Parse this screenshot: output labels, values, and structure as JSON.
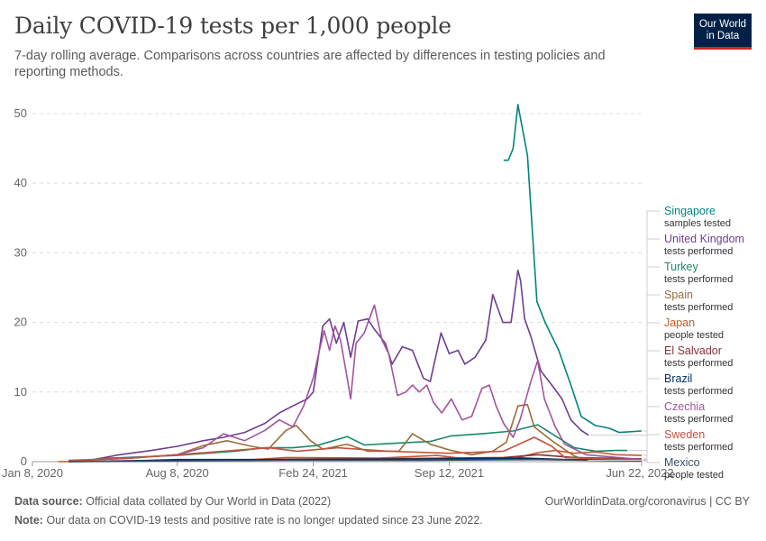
{
  "header": {
    "title": "Daily COVID-19 tests per 1,000 people",
    "subtitle": "7-day rolling average. Comparisons across countries are affected by differences in testing policies and reporting methods.",
    "logo_line1": "Our World",
    "logo_line2": "in Data"
  },
  "footer": {
    "source_label": "Data source:",
    "source_text": "Official data collated by Our World in Data (2022)",
    "credit": "OurWorldinData.org/coronavirus | CC BY",
    "note_label": "Note:",
    "note_text": "Our data on COVID-19 tests and positive rate is no longer updated since 23 June 2022."
  },
  "chart_data": {
    "type": "line",
    "title": "Daily COVID-19 tests per 1,000 people",
    "subtitle": "7-day rolling average. Comparisons across countries are affected by differences in testing policies and reporting methods.",
    "x_ticks": [
      "Jan 8, 2020",
      "Aug 8, 2020",
      "Feb 24, 2021",
      "Sep 12, 2021",
      "Jun 22, 2022"
    ],
    "y_ticks": [
      0,
      10,
      20,
      30,
      40,
      50
    ],
    "xlim": [
      "2020-01-08",
      "2022-06-22"
    ],
    "ylim": [
      0,
      51
    ],
    "grid": "horizontal dashed",
    "legend_placement": "right",
    "series": [
      {
        "name": "Singapore",
        "sub": "samples tested",
        "color": "#00847e",
        "points": [
          [
            "2021-12-01",
            43.3
          ],
          [
            "2021-12-08",
            43.3
          ],
          [
            "2021-12-15",
            45
          ],
          [
            "2021-12-22",
            51.3
          ],
          [
            "2022-01-05",
            44
          ],
          [
            "2022-01-19",
            23
          ],
          [
            "2022-01-31",
            20
          ],
          [
            "2022-02-20",
            16
          ],
          [
            "2022-03-10",
            11
          ],
          [
            "2022-03-25",
            6.5
          ],
          [
            "2022-04-15",
            5.2
          ],
          [
            "2022-05-05",
            4.8
          ],
          [
            "2022-05-20",
            4.2
          ],
          [
            "2022-06-22",
            4.4
          ]
        ]
      },
      {
        "name": "United Kingdom",
        "sub": "tests performed",
        "color": "#6d3e91",
        "points": [
          [
            "2020-04-01",
            0.2
          ],
          [
            "2020-05-15",
            1.0
          ],
          [
            "2020-07-01",
            1.6
          ],
          [
            "2020-08-08",
            2.2
          ],
          [
            "2020-09-15",
            3.0
          ],
          [
            "2020-10-15",
            3.5
          ],
          [
            "2020-11-15",
            4.2
          ],
          [
            "2020-12-15",
            5.5
          ],
          [
            "2021-01-05",
            7.0
          ],
          [
            "2021-01-25",
            8.0
          ],
          [
            "2021-02-15",
            9.0
          ],
          [
            "2021-02-24",
            10.0
          ],
          [
            "2021-03-10",
            19.5
          ],
          [
            "2021-03-20",
            20.5
          ],
          [
            "2021-03-30",
            17.0
          ],
          [
            "2021-04-10",
            20.0
          ],
          [
            "2021-04-20",
            15.0
          ],
          [
            "2021-05-01",
            20.2
          ],
          [
            "2021-05-15",
            20.5
          ],
          [
            "2021-05-25",
            19.0
          ],
          [
            "2021-06-10",
            17.0
          ],
          [
            "2021-06-20",
            14.0
          ],
          [
            "2021-07-05",
            16.5
          ],
          [
            "2021-07-20",
            16.0
          ],
          [
            "2021-08-05",
            12.0
          ],
          [
            "2021-08-15",
            11.5
          ],
          [
            "2021-08-31",
            18.5
          ],
          [
            "2021-09-12",
            15.5
          ],
          [
            "2021-09-25",
            16.0
          ],
          [
            "2021-10-05",
            14.0
          ],
          [
            "2021-10-20",
            15.0
          ],
          [
            "2021-11-05",
            17.5
          ],
          [
            "2021-11-15",
            24.0
          ],
          [
            "2021-11-30",
            20.0
          ],
          [
            "2021-12-12",
            20.0
          ],
          [
            "2021-12-22",
            27.5
          ],
          [
            "2021-12-26",
            26.0
          ],
          [
            "2022-01-01",
            20.5
          ],
          [
            "2022-01-10",
            18.0
          ],
          [
            "2022-01-25",
            13.0
          ],
          [
            "2022-02-10",
            11.0
          ],
          [
            "2022-02-25",
            9.0
          ],
          [
            "2022-03-10",
            6.0
          ],
          [
            "2022-03-25",
            4.5
          ],
          [
            "2022-04-05",
            3.8
          ]
        ]
      },
      {
        "name": "Turkey",
        "sub": "tests performed",
        "color": "#18896a",
        "points": [
          [
            "2020-03-20",
            0.1
          ],
          [
            "2020-05-01",
            0.5
          ],
          [
            "2020-08-08",
            0.9
          ],
          [
            "2020-11-01",
            1.5
          ],
          [
            "2020-12-15",
            2.0
          ],
          [
            "2021-01-25",
            2.0
          ],
          [
            "2021-03-01",
            2.3
          ],
          [
            "2021-04-15",
            3.6
          ],
          [
            "2021-05-10",
            2.4
          ],
          [
            "2021-06-15",
            2.6
          ],
          [
            "2021-08-15",
            2.9
          ],
          [
            "2021-09-15",
            3.7
          ],
          [
            "2021-10-30",
            4.0
          ],
          [
            "2021-12-15",
            4.4
          ],
          [
            "2022-01-20",
            5.3
          ],
          [
            "2022-02-10",
            4.0
          ],
          [
            "2022-03-15",
            2.0
          ],
          [
            "2022-04-15",
            1.5
          ],
          [
            "2022-05-15",
            1.6
          ],
          [
            "2022-06-01",
            1.6
          ]
        ]
      },
      {
        "name": "Spain",
        "sub": "tests performed",
        "color": "#996d39",
        "points": [
          [
            "2020-03-01",
            0.2
          ],
          [
            "2020-06-01",
            0.5
          ],
          [
            "2020-08-08",
            1.0
          ],
          [
            "2020-09-15",
            2.3
          ],
          [
            "2020-10-20",
            3.0
          ],
          [
            "2020-11-25",
            2.2
          ],
          [
            "2020-12-20",
            1.8
          ],
          [
            "2021-01-15",
            4.5
          ],
          [
            "2021-01-30",
            5.2
          ],
          [
            "2021-02-20",
            3.0
          ],
          [
            "2021-03-10",
            1.8
          ],
          [
            "2021-04-15",
            2.5
          ],
          [
            "2021-05-15",
            1.5
          ],
          [
            "2021-06-30",
            1.5
          ],
          [
            "2021-07-20",
            4.0
          ],
          [
            "2021-08-15",
            2.5
          ],
          [
            "2021-09-15",
            1.6
          ],
          [
            "2021-10-15",
            1.0
          ],
          [
            "2021-11-15",
            1.5
          ],
          [
            "2021-12-05",
            2.8
          ],
          [
            "2021-12-22",
            8.0
          ],
          [
            "2022-01-05",
            8.2
          ],
          [
            "2022-01-15",
            5.0
          ],
          [
            "2022-02-10",
            3.0
          ],
          [
            "2022-03-15",
            0.8
          ],
          [
            "2022-04-01",
            0.2
          ]
        ]
      },
      {
        "name": "Japan",
        "sub": "people tested",
        "color": "#c15b27",
        "points": [
          [
            "2020-02-15",
            0.0
          ],
          [
            "2020-06-01",
            0.1
          ],
          [
            "2020-08-08",
            0.2
          ],
          [
            "2020-12-01",
            0.3
          ],
          [
            "2021-01-15",
            0.6
          ],
          [
            "2021-06-01",
            0.5
          ],
          [
            "2021-08-25",
            0.9
          ],
          [
            "2021-10-15",
            0.3
          ],
          [
            "2021-12-15",
            0.4
          ],
          [
            "2022-01-20",
            1.3
          ],
          [
            "2022-02-15",
            1.6
          ],
          [
            "2022-03-15",
            1.2
          ],
          [
            "2022-04-15",
            1.4
          ],
          [
            "2022-05-15",
            1.0
          ],
          [
            "2022-06-22",
            0.9
          ]
        ]
      },
      {
        "name": "El Salvador",
        "sub": "tests performed",
        "color": "#883039",
        "points": [
          [
            "2020-05-01",
            0.1
          ],
          [
            "2020-12-01",
            0.3
          ],
          [
            "2021-06-01",
            0.4
          ],
          [
            "2021-12-01",
            0.6
          ],
          [
            "2022-01-20",
            1.0
          ],
          [
            "2022-03-15",
            0.6
          ],
          [
            "2022-06-22",
            0.4
          ]
        ]
      },
      {
        "name": "Brazil",
        "sub": "tests performed",
        "color": "#002e66",
        "points": [
          [
            "2020-03-01",
            0.0
          ],
          [
            "2020-06-01",
            0.1
          ],
          [
            "2020-08-08",
            0.3
          ],
          [
            "2021-01-01",
            0.3
          ],
          [
            "2021-09-12",
            0.4
          ],
          [
            "2022-01-01",
            0.5
          ],
          [
            "2022-03-01",
            0.3
          ],
          [
            "2022-06-22",
            0.3
          ]
        ]
      },
      {
        "name": "Czechia",
        "sub": "tests performed",
        "color": "#a2559c",
        "points": [
          [
            "2020-03-01",
            0.1
          ],
          [
            "2020-06-01",
            0.5
          ],
          [
            "2020-08-08",
            1.0
          ],
          [
            "2020-09-15",
            2.0
          ],
          [
            "2020-10-15",
            4.0
          ],
          [
            "2020-11-15",
            3.0
          ],
          [
            "2020-12-15",
            4.5
          ],
          [
            "2021-01-05",
            6.0
          ],
          [
            "2021-01-25",
            5.0
          ],
          [
            "2021-02-10",
            8.0
          ],
          [
            "2021-02-24",
            12.0
          ],
          [
            "2021-03-05",
            16.0
          ],
          [
            "2021-03-12",
            18.8
          ],
          [
            "2021-03-20",
            16.0
          ],
          [
            "2021-03-28",
            19.5
          ],
          [
            "2021-04-05",
            17.5
          ],
          [
            "2021-04-15",
            12.0
          ],
          [
            "2021-04-20",
            9.0
          ],
          [
            "2021-04-28",
            17.0
          ],
          [
            "2021-05-10",
            18.5
          ],
          [
            "2021-05-25",
            22.5
          ],
          [
            "2021-06-05",
            17.5
          ],
          [
            "2021-06-15",
            15.5
          ],
          [
            "2021-06-28",
            9.5
          ],
          [
            "2021-07-10",
            10.0
          ],
          [
            "2021-07-20",
            11.0
          ],
          [
            "2021-07-30",
            10.0
          ],
          [
            "2021-08-10",
            11.0
          ],
          [
            "2021-08-20",
            8.5
          ],
          [
            "2021-09-01",
            7.0
          ],
          [
            "2021-09-15",
            9.0
          ],
          [
            "2021-10-01",
            6.0
          ],
          [
            "2021-10-15",
            6.5
          ],
          [
            "2021-10-30",
            10.5
          ],
          [
            "2021-11-10",
            11.0
          ],
          [
            "2021-11-20",
            8.0
          ],
          [
            "2021-12-01",
            5.5
          ],
          [
            "2021-12-15",
            3.5
          ],
          [
            "2021-12-25",
            6.0
          ],
          [
            "2022-01-10",
            11.5
          ],
          [
            "2022-01-20",
            14.5
          ],
          [
            "2022-01-30",
            9.0
          ],
          [
            "2022-02-15",
            5.0
          ],
          [
            "2022-03-01",
            2.5
          ],
          [
            "2022-04-01",
            1.0
          ],
          [
            "2022-06-22",
            0.3
          ]
        ]
      },
      {
        "name": "Sweden",
        "sub": "tests performed",
        "color": "#c4523e",
        "points": [
          [
            "2020-03-01",
            0.1
          ],
          [
            "2020-06-01",
            0.5
          ],
          [
            "2020-08-08",
            1.0
          ],
          [
            "2020-10-15",
            1.5
          ],
          [
            "2020-12-20",
            2.0
          ],
          [
            "2021-02-01",
            1.5
          ],
          [
            "2021-04-01",
            2.0
          ],
          [
            "2021-06-15",
            1.5
          ],
          [
            "2021-09-12",
            1.2
          ],
          [
            "2021-12-01",
            1.5
          ],
          [
            "2022-01-15",
            3.5
          ],
          [
            "2022-02-10",
            2.2
          ],
          [
            "2022-03-01",
            0.6
          ],
          [
            "2022-06-22",
            0.2
          ]
        ]
      },
      {
        "name": "Mexico",
        "sub": "people tested",
        "color": "#3c4e66",
        "points": [
          [
            "2020-03-01",
            0.0
          ],
          [
            "2020-08-08",
            0.1
          ],
          [
            "2021-01-15",
            0.2
          ],
          [
            "2021-08-01",
            0.2
          ],
          [
            "2022-01-20",
            0.3
          ],
          [
            "2022-06-22",
            0.1
          ]
        ]
      }
    ]
  }
}
